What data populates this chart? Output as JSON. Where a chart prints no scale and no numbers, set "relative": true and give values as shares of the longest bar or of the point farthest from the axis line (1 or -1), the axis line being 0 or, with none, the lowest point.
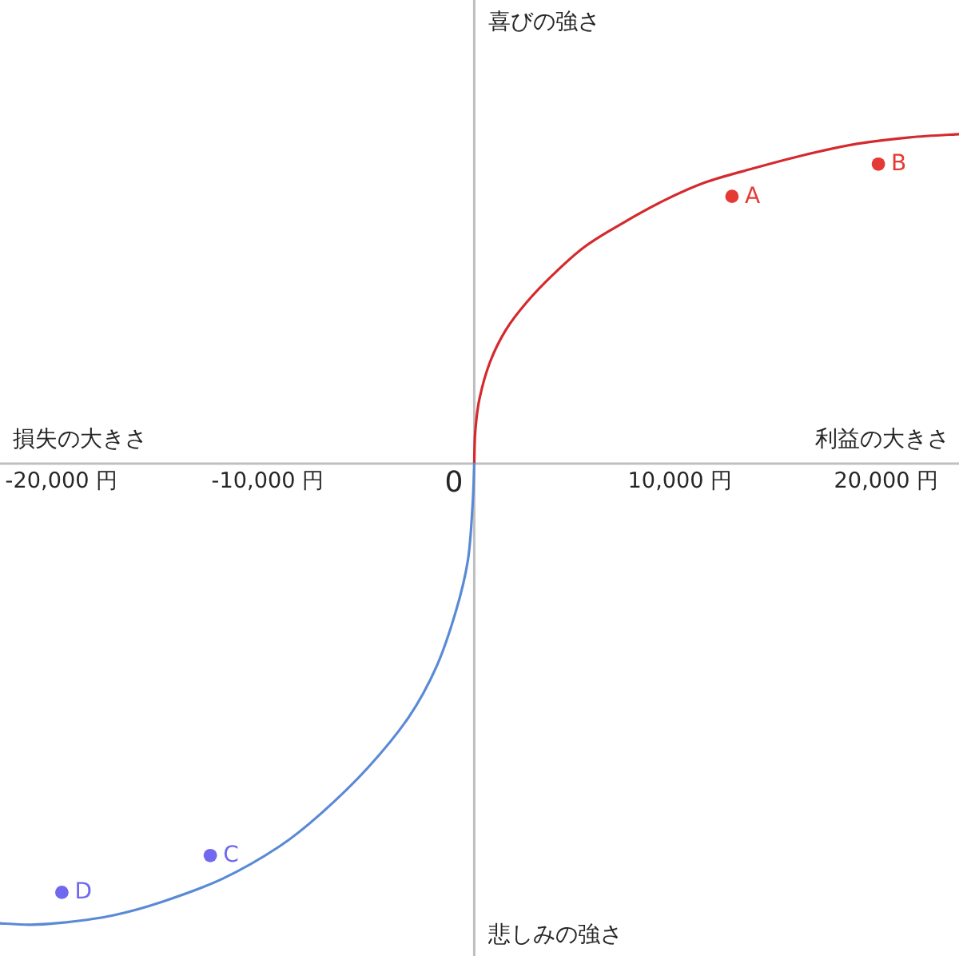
{
  "chart_data": {
    "type": "line",
    "xlabel": "利益の大きさ",
    "ylabel": "喜びの強さ",
    "annotations": [
      "損失の大きさ",
      "悲しみの強さ",
      "0"
    ],
    "xlim": [
      -23000,
      23510
    ],
    "xticks": [
      {
        "value": -20000,
        "label": "-20,000 円"
      },
      {
        "value": -10000,
        "label": "-10,000 円"
      },
      {
        "value": 10000,
        "label": "10,000 円"
      },
      {
        "value": 20000,
        "label": "20,000 円"
      }
    ],
    "relative": true,
    "line_style": "solid",
    "series": [
      {
        "color": "#d42a2e",
        "x": [
          0,
          50,
          250,
          760,
          1530,
          2540,
          3820,
          5340,
          7120,
          9160,
          11190,
          13480,
          16030,
          18570,
          21120,
          23510
        ],
        "values": [
          0,
          0.07,
          0.14,
          0.22,
          0.29,
          0.35,
          0.41,
          0.47,
          0.52,
          0.57,
          0.61,
          0.64,
          0.67,
          0.694,
          0.708,
          0.715
        ]
      },
      {
        "color": "#5a8ad6",
        "x": [
          -23000,
          -21500,
          -19790,
          -17530,
          -15110,
          -12190,
          -9440,
          -7460,
          -5170,
          -3180,
          -1830,
          -890,
          -310,
          -80,
          0
        ],
        "values": [
          -0.997,
          -1,
          -0.995,
          -0.98,
          -0.95,
          -0.9,
          -0.83,
          -0.76,
          -0.66,
          -0.55,
          -0.44,
          -0.32,
          -0.21,
          -0.09,
          0
        ]
      },
      {
        "type": "scatter",
        "name": "A",
        "color": "#e53935",
        "marker": "circle",
        "x": [
          12500
        ],
        "values": [
          0.58
        ]
      },
      {
        "type": "scatter",
        "name": "B",
        "color": "#e53935",
        "marker": "circle",
        "x": [
          19600
        ],
        "values": [
          0.65
        ]
      },
      {
        "type": "scatter",
        "name": "C",
        "color": "#7068ee",
        "marker": "circle",
        "x": [
          -12800
        ],
        "values": [
          -0.85
        ]
      },
      {
        "type": "scatter",
        "name": "D",
        "color": "#7068ee",
        "marker": "circle",
        "x": [
          -20000
        ],
        "values": [
          -0.93
        ]
      }
    ]
  }
}
